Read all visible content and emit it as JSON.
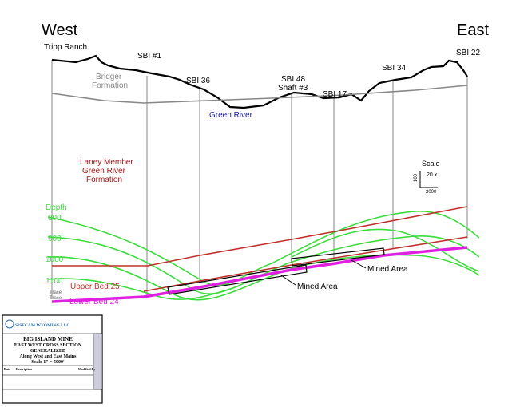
{
  "header": {
    "west": "West",
    "east": "East"
  },
  "wells": {
    "tripp_ranch": "Tripp Ranch",
    "sbi_1": "SBI #1",
    "sbi_36": "SBI 36",
    "sbi_48": "SBI 48",
    "shaft_3": "Shaft #3",
    "sbi_17": "SBI 17",
    "sbi_34": "SBI 34",
    "sbi_22": "SBI 22"
  },
  "formations": {
    "bridger": [
      "Bridger",
      "Formation"
    ],
    "green_river": "Green River",
    "laney": [
      "Laney Member",
      "Green River",
      "Formation"
    ]
  },
  "depth": {
    "title": "Depth",
    "labels": [
      "800'",
      "900'",
      "1000'",
      "1100'"
    ]
  },
  "beds": {
    "upper": "Upper Bed 25",
    "lower": "Lower Bed 24",
    "trace": [
      "Trace",
      "Trace"
    ],
    "mined": [
      "Mined Area",
      "Mined Area"
    ]
  },
  "scale": {
    "title": "Scale",
    "vertical": "100",
    "ratio": "20 x",
    "horizontal": "2000"
  },
  "title_block": {
    "company": "SISECAM WYOMING LLC",
    "lines": [
      "BIG ISLAND MINE",
      "EAST WEST CROSS SECTION",
      "GENERALIZED",
      "Along West and East Mains",
      "Scale 1\" = 5000'"
    ],
    "columns": [
      "Date",
      "Description",
      "Modified By"
    ]
  }
}
